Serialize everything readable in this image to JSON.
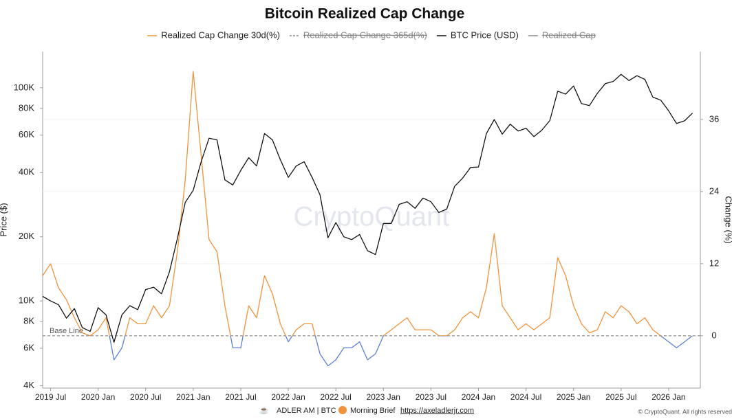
{
  "chart_data": {
    "type": "line",
    "title": "Bitcoin Realized Cap Change",
    "x": [
      "2019-06",
      "2019-07",
      "2019-08",
      "2019-09",
      "2019-10",
      "2019-11",
      "2019-12",
      "2020-01",
      "2020-02",
      "2020-03",
      "2020-04",
      "2020-05",
      "2020-06",
      "2020-07",
      "2020-08",
      "2020-09",
      "2020-10",
      "2020-11",
      "2020-12",
      "2021-01",
      "2021-02",
      "2021-03",
      "2021-04",
      "2021-05",
      "2021-06",
      "2021-07",
      "2021-08",
      "2021-09",
      "2021-10",
      "2021-11",
      "2021-12",
      "2022-01",
      "2022-02",
      "2022-03",
      "2022-04",
      "2022-05",
      "2022-06",
      "2022-07",
      "2022-08",
      "2022-09",
      "2022-10",
      "2022-11",
      "2022-12",
      "2023-01",
      "2023-02",
      "2023-03",
      "2023-04",
      "2023-05",
      "2023-06",
      "2023-07",
      "2023-08",
      "2023-09",
      "2023-10",
      "2023-11",
      "2023-12",
      "2024-01",
      "2024-02",
      "2024-03",
      "2024-04",
      "2024-05",
      "2024-06",
      "2024-07",
      "2024-08",
      "2024-09",
      "2024-10",
      "2024-11",
      "2024-12",
      "2025-01",
      "2025-02",
      "2025-03",
      "2025-04",
      "2025-05",
      "2025-06",
      "2025-07",
      "2025-08",
      "2025-09",
      "2025-10",
      "2025-11",
      "2025-12",
      "2026-01",
      "2026-02",
      "2026-03",
      "2026-04"
    ],
    "series": [
      {
        "name": "Realized Cap Change 30d(%)",
        "color": "#f0923b",
        "negative_color": "#5b7fd6",
        "axis": "y2",
        "values": [
          10,
          12,
          8,
          6,
          3,
          0.5,
          0,
          1,
          3,
          -4,
          -2,
          3,
          2,
          2,
          5,
          3,
          5,
          14,
          26,
          44,
          30,
          16,
          14,
          5,
          -2,
          -2,
          5,
          3,
          10,
          7,
          2,
          -1,
          1,
          2,
          2,
          -3,
          -5,
          -4,
          -2,
          -2,
          -1,
          -4,
          -3,
          0,
          1,
          2,
          3,
          1,
          1,
          1,
          0,
          0,
          1,
          3,
          4,
          3,
          8,
          17,
          5,
          3,
          1,
          2,
          1,
          2,
          3,
          13,
          10,
          5,
          2,
          0.5,
          1,
          4,
          3,
          5,
          4,
          2,
          3,
          1,
          0,
          -1,
          -2,
          -1,
          0
        ]
      },
      {
        "name": "BTC Price (USD)",
        "color": "#111111",
        "axis": "y",
        "values": [
          10500,
          10000,
          9600,
          8300,
          9200,
          7500,
          7200,
          9300,
          8600,
          6400,
          8600,
          9500,
          9100,
          11300,
          11600,
          10800,
          13700,
          19600,
          29000,
          33000,
          45000,
          58000,
          57000,
          37000,
          35000,
          41000,
          47000,
          43000,
          61000,
          57000,
          46000,
          38000,
          43000,
          45000,
          38000,
          31500,
          19800,
          23300,
          20000,
          19400,
          20500,
          17200,
          16500,
          23100,
          23100,
          28400,
          29200,
          27200,
          30400,
          29200,
          26000,
          27000,
          34500,
          37700,
          42300,
          42500,
          61000,
          71000,
          60600,
          67500,
          62700,
          64600,
          59000,
          63300,
          70200,
          96400,
          93400,
          102000,
          84300,
          82500,
          94200,
          104600,
          107100,
          115700,
          108200,
          114000,
          109500,
          90400,
          87500,
          78000,
          68000,
          70000,
          76000
        ]
      }
    ],
    "hidden_series": [
      {
        "name": "Realized Cap Change 365d(%)",
        "color": "#8a8a8a"
      },
      {
        "name": "Realized Cap",
        "color": "#8a8a8a"
      }
    ],
    "xlim": [
      "2019-06",
      "2026-05"
    ],
    "xticks": [
      {
        "value": "2019-07",
        "label": "2019 Jul"
      },
      {
        "value": "2020-01",
        "label": "2020 Jan"
      },
      {
        "value": "2020-07",
        "label": "2020 Jul"
      },
      {
        "value": "2021-01",
        "label": "2021 Jan"
      },
      {
        "value": "2021-07",
        "label": "2021 Jul"
      },
      {
        "value": "2022-01",
        "label": "2022 Jan"
      },
      {
        "value": "2022-07",
        "label": "2022 Jul"
      },
      {
        "value": "2023-01",
        "label": "2023 Jan"
      },
      {
        "value": "2023-07",
        "label": "2023 Jul"
      },
      {
        "value": "2024-01",
        "label": "2024 Jan"
      },
      {
        "value": "2024-07",
        "label": "2024 Jul"
      },
      {
        "value": "2025-01",
        "label": "2025 Jan"
      },
      {
        "value": "2025-07",
        "label": "2025 Jul"
      },
      {
        "value": "2026-01",
        "label": "2026 Jan"
      }
    ],
    "ylabel": "Price ($)",
    "y_log": true,
    "ylim": [
      3900,
      148000
    ],
    "yticks": [
      {
        "value": 4000,
        "label": "4K"
      },
      {
        "value": 6000,
        "label": "6K"
      },
      {
        "value": 8000,
        "label": "8K"
      },
      {
        "value": 10000,
        "label": "10K"
      },
      {
        "value": 20000,
        "label": "20K"
      },
      {
        "value": 40000,
        "label": "40K"
      },
      {
        "value": 60000,
        "label": "60K"
      },
      {
        "value": 80000,
        "label": "80K"
      },
      {
        "value": 100000,
        "label": "100K"
      }
    ],
    "y2label": "Change (%)",
    "y2lim": [
      -8.7,
      47.3
    ],
    "y2ticks": [
      0,
      12,
      24,
      36
    ],
    "grid": true,
    "baseline": {
      "value": 0,
      "label": "Base Line"
    },
    "watermark": "CryptoQuant",
    "footer": {
      "author": "ADLER AM | BTC",
      "brand": "Morning Brief",
      "url": "https://axeladlerjr.com",
      "copyright": "© CryptoQuant. All rights reserved"
    }
  }
}
